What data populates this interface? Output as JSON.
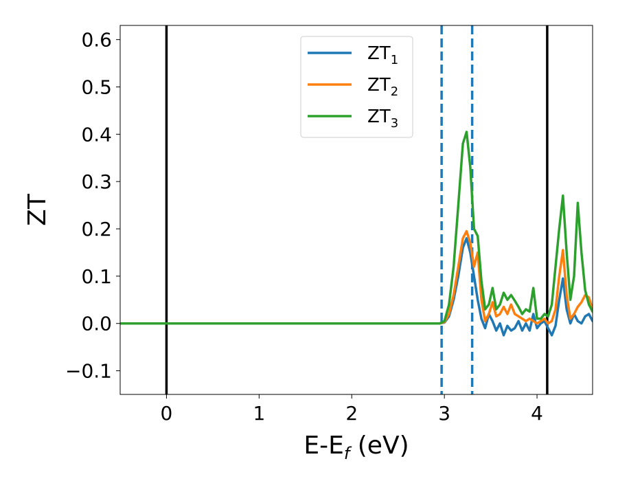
{
  "chart_data": {
    "type": "line",
    "xlabel": "E-E",
    "xlabel_sub": "f",
    "xlabel_unit": " (eV)",
    "ylabel": "ZT",
    "xlim": [
      -0.5,
      4.6
    ],
    "ylim": [
      -0.15,
      0.63
    ],
    "xticks": [
      0,
      1,
      2,
      3,
      4
    ],
    "yticks": [
      -0.1,
      0.0,
      0.1,
      0.2,
      0.3,
      0.4,
      0.5,
      0.6
    ],
    "ytick_labels": [
      "−0.1",
      "0.0",
      "0.1",
      "0.2",
      "0.3",
      "0.4",
      "0.5",
      "0.6"
    ],
    "xtick_labels": [
      "0",
      "1",
      "2",
      "3",
      "4"
    ],
    "grid": false,
    "legend_position": "top-center",
    "vlines": [
      {
        "x": 0.0,
        "color": "#000000",
        "style": "solid"
      },
      {
        "x": 4.11,
        "color": "#000000",
        "style": "solid"
      },
      {
        "x": 2.97,
        "color": "#1f77b4",
        "style": "dashed"
      },
      {
        "x": 3.3,
        "color": "#1f77b4",
        "style": "dashed"
      }
    ],
    "series": [
      {
        "name": "ZT",
        "sub": "1",
        "color": "#1f77b4",
        "x": [
          -0.5,
          2.95,
          3.0,
          3.05,
          3.1,
          3.15,
          3.2,
          3.24,
          3.28,
          3.32,
          3.36,
          3.4,
          3.44,
          3.48,
          3.52,
          3.56,
          3.6,
          3.64,
          3.68,
          3.72,
          3.76,
          3.8,
          3.84,
          3.88,
          3.92,
          3.96,
          4.0,
          4.04,
          4.08,
          4.12,
          4.16,
          4.2,
          4.24,
          4.28,
          4.32,
          4.36,
          4.4,
          4.44,
          4.48,
          4.52,
          4.56,
          4.6
        ],
        "y": [
          0.0,
          0.0,
          0.002,
          0.015,
          0.05,
          0.1,
          0.16,
          0.18,
          0.15,
          0.1,
          0.05,
          0.01,
          -0.01,
          0.02,
          0.005,
          -0.015,
          0.0,
          -0.025,
          -0.005,
          -0.015,
          -0.01,
          0.005,
          -0.015,
          0.0,
          -0.015,
          0.02,
          -0.01,
          0.0,
          0.005,
          -0.01,
          -0.025,
          -0.005,
          0.05,
          0.095,
          0.03,
          0.0,
          0.02,
          0.005,
          0.0,
          0.015,
          0.02,
          0.005
        ]
      },
      {
        "name": "ZT",
        "sub": "2",
        "color": "#ff7f0e",
        "x": [
          -0.5,
          2.95,
          3.0,
          3.05,
          3.1,
          3.15,
          3.2,
          3.24,
          3.28,
          3.32,
          3.36,
          3.4,
          3.44,
          3.48,
          3.52,
          3.56,
          3.6,
          3.64,
          3.68,
          3.72,
          3.76,
          3.8,
          3.84,
          3.88,
          3.92,
          3.96,
          4.0,
          4.04,
          4.08,
          4.12,
          4.16,
          4.2,
          4.24,
          4.28,
          4.32,
          4.36,
          4.4,
          4.44,
          4.48,
          4.52,
          4.56,
          4.6
        ],
        "y": [
          0.0,
          0.0,
          0.003,
          0.02,
          0.06,
          0.12,
          0.18,
          0.195,
          0.17,
          0.12,
          0.15,
          0.05,
          0.005,
          0.02,
          0.045,
          0.015,
          0.02,
          0.035,
          0.02,
          0.04,
          0.02,
          0.015,
          0.01,
          0.005,
          0.01,
          0.005,
          0.0,
          0.005,
          0.01,
          0.0,
          0.005,
          0.03,
          0.1,
          0.155,
          0.06,
          0.01,
          0.02,
          0.035,
          0.045,
          0.06,
          0.055,
          0.03
        ]
      },
      {
        "name": "ZT",
        "sub": "3",
        "color": "#2ca02c",
        "x": [
          -0.5,
          2.95,
          3.0,
          3.05,
          3.1,
          3.15,
          3.2,
          3.24,
          3.28,
          3.32,
          3.36,
          3.4,
          3.44,
          3.48,
          3.52,
          3.56,
          3.6,
          3.64,
          3.68,
          3.72,
          3.76,
          3.8,
          3.84,
          3.88,
          3.92,
          3.96,
          4.0,
          4.04,
          4.08,
          4.12,
          4.16,
          4.2,
          4.24,
          4.28,
          4.32,
          4.36,
          4.4,
          4.44,
          4.48,
          4.52,
          4.56,
          4.6
        ],
        "y": [
          0.0,
          0.0,
          0.005,
          0.04,
          0.12,
          0.25,
          0.38,
          0.405,
          0.33,
          0.2,
          0.185,
          0.09,
          0.03,
          0.04,
          0.075,
          0.03,
          0.04,
          0.065,
          0.05,
          0.06,
          0.048,
          0.035,
          0.02,
          0.03,
          0.025,
          0.075,
          0.01,
          0.01,
          0.02,
          0.015,
          0.04,
          0.12,
          0.2,
          0.27,
          0.15,
          0.05,
          0.1,
          0.255,
          0.15,
          0.07,
          0.04,
          0.025
        ]
      }
    ]
  }
}
